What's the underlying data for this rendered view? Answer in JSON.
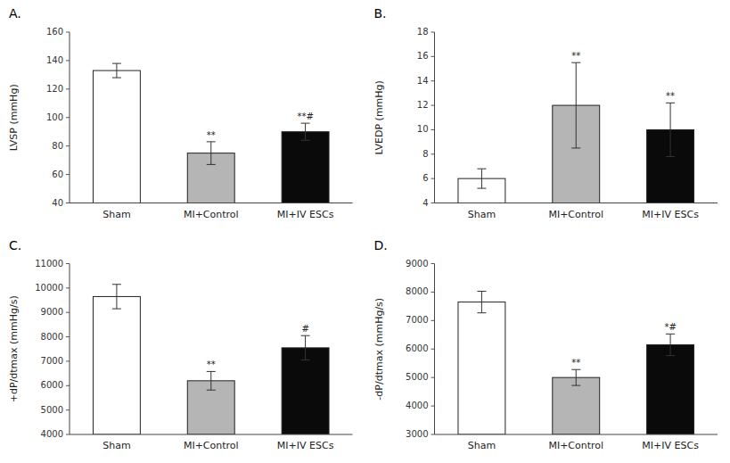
{
  "chart_data": [
    {
      "type": "bar",
      "title": "A.",
      "ylabel": "LVSP (mmHg)",
      "categories": [
        "Sham",
        "MI+Control",
        "MI+IV ESCs"
      ],
      "values": [
        133,
        75,
        90
      ],
      "errors": [
        5,
        8,
        6
      ],
      "annotations": [
        null,
        "**",
        "**#"
      ],
      "colors": [
        "#ffffff",
        "#b5b5b5",
        "#0a0a0a"
      ],
      "ylim": [
        40,
        160
      ],
      "yticks": [
        40,
        60,
        80,
        100,
        120,
        140,
        160
      ],
      "grid": false
    },
    {
      "type": "bar",
      "title": "B.",
      "ylabel": "LVEDP (mmHg)",
      "categories": [
        "Sham",
        "MI+Control",
        "MI+IV ESCs"
      ],
      "values": [
        6,
        12,
        10
      ],
      "errors": [
        0.8,
        3.5,
        2.2
      ],
      "annotations": [
        null,
        "**",
        "**"
      ],
      "colors": [
        "#ffffff",
        "#b5b5b5",
        "#0a0a0a"
      ],
      "ylim": [
        4,
        18
      ],
      "yticks": [
        4,
        6,
        8,
        10,
        12,
        14,
        16,
        18
      ],
      "grid": false
    },
    {
      "type": "bar",
      "title": "C.",
      "ylabel": "+dP/dtmax (mmHg/s)",
      "categories": [
        "Sham",
        "MI+Control",
        "MI+IV ESCs"
      ],
      "values": [
        9650,
        6200,
        7550
      ],
      "errors": [
        500,
        380,
        500
      ],
      "annotations": [
        null,
        "**",
        "#"
      ],
      "colors": [
        "#ffffff",
        "#b5b5b5",
        "#0a0a0a"
      ],
      "ylim": [
        4000,
        11000
      ],
      "yticks": [
        4000,
        5000,
        6000,
        7000,
        8000,
        9000,
        10000,
        11000
      ],
      "grid": false
    },
    {
      "type": "bar",
      "title": "D.",
      "ylabel": "-dP/dtmax (mmHg/s)",
      "categories": [
        "Sham",
        "MI+Control",
        "MI+IV ESCs"
      ],
      "values": [
        7650,
        5000,
        6150
      ],
      "errors": [
        380,
        280,
        380
      ],
      "annotations": [
        null,
        "**",
        "*#"
      ],
      "colors": [
        "#ffffff",
        "#b5b5b5",
        "#0a0a0a"
      ],
      "ylim": [
        3000,
        9000
      ],
      "yticks": [
        3000,
        4000,
        5000,
        6000,
        7000,
        8000,
        9000
      ],
      "grid": false
    }
  ]
}
